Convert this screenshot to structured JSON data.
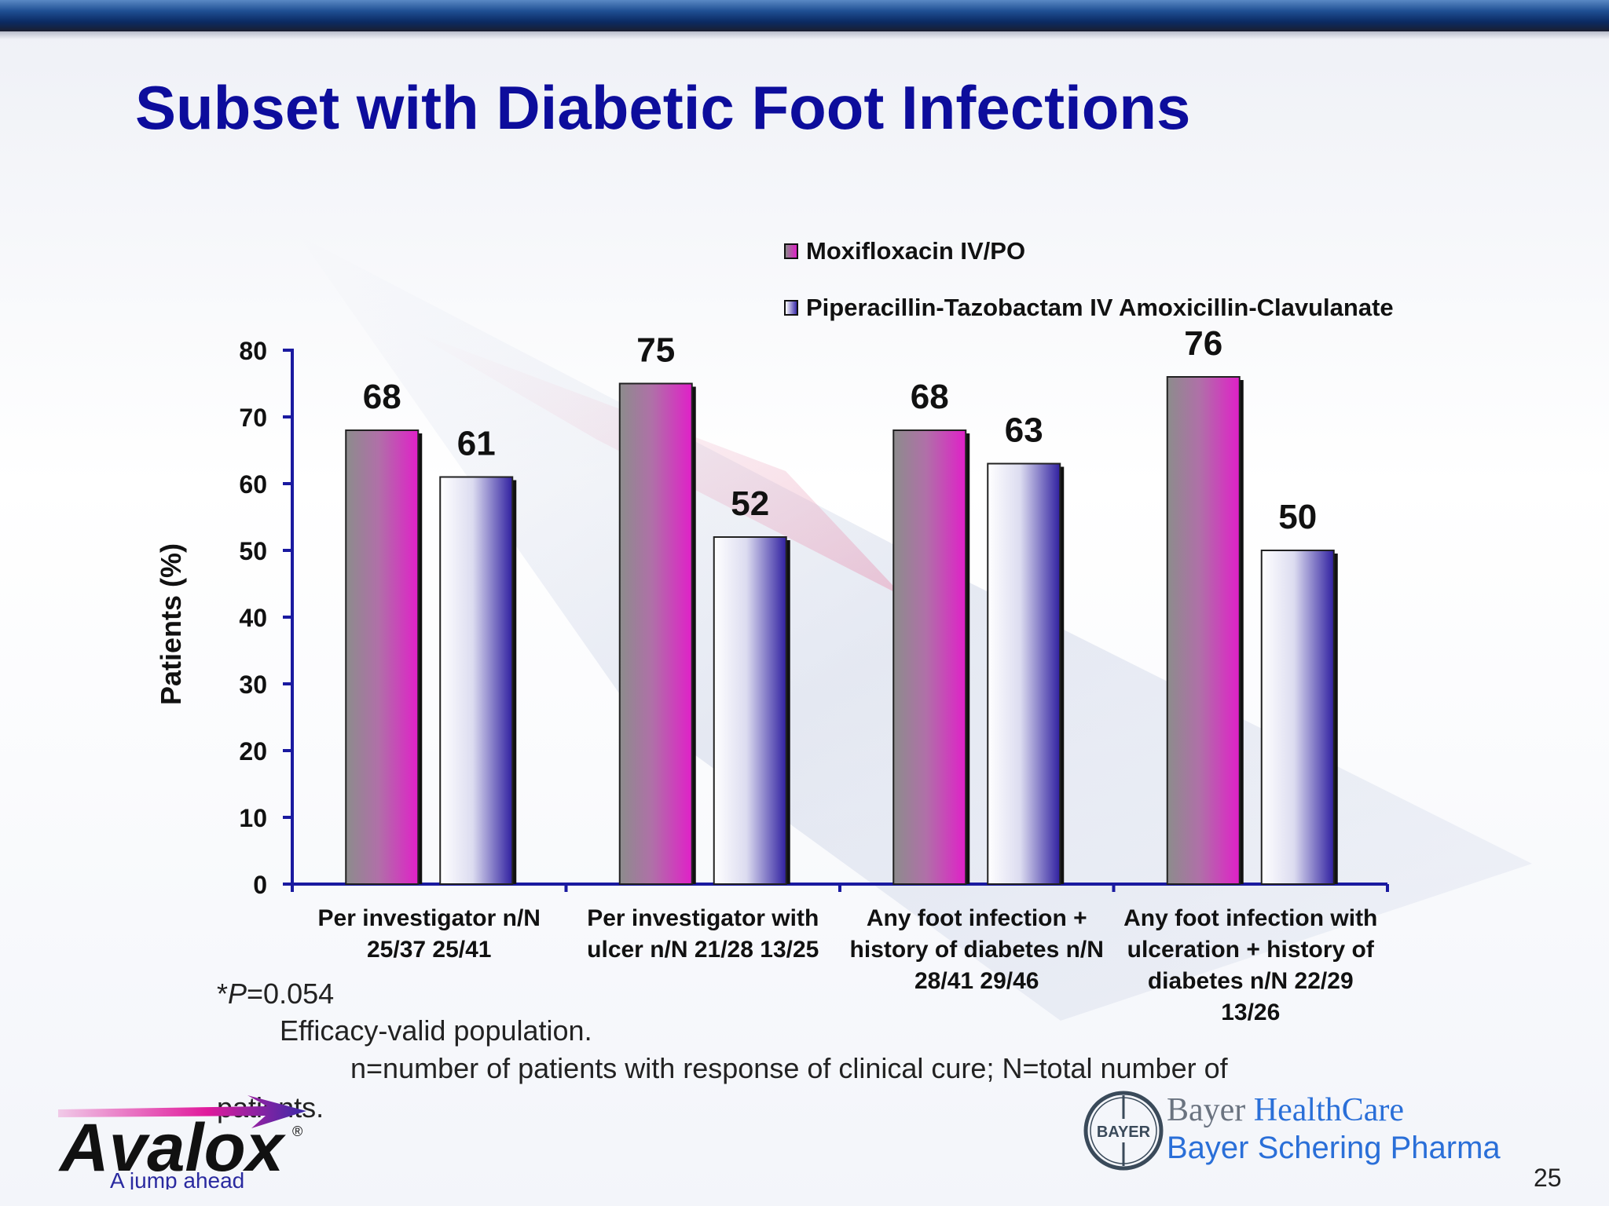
{
  "slide": {
    "title": "Subset with Diabetic Foot Infections",
    "page_number": "25"
  },
  "chart_data": {
    "type": "bar",
    "ylabel": "Patients (%)",
    "ylim": [
      0,
      80
    ],
    "yticks": [
      0,
      10,
      20,
      30,
      40,
      50,
      60,
      70,
      80
    ],
    "legend_position": "top-right",
    "categories": [
      "Per investigator n/N 25/37 25/41",
      "Per investigator with ulcer n/N 21/28 13/25",
      "Any foot infection + history of diabetes n/N 28/41 29/46",
      "Any foot infection with ulceration + history of diabetes n/N 22/29 13/26"
    ],
    "category_lines": [
      [
        "Per investigator n/N",
        "25/37 25/41"
      ],
      [
        "Per investigator with",
        "ulcer n/N 21/28 13/25"
      ],
      [
        "Any foot infection +",
        "history of diabetes n/N",
        "28/41 29/46"
      ],
      [
        "Any foot infection with",
        "ulceration + history of",
        "diabetes n/N 22/29",
        "13/26"
      ]
    ],
    "series": [
      {
        "name": "Moxifloxacin IV/PO",
        "values": [
          68,
          75,
          68,
          76
        ],
        "color": "#e020c8"
      },
      {
        "name": "Piperacillin-Tazobactam IV Amoxicillin-Clavulanate",
        "values": [
          61,
          52,
          63,
          50
        ],
        "color": "#3a2aa8"
      }
    ],
    "axis_color": "#1a1aa0"
  },
  "footnotes": {
    "p_prefix": "*",
    "p_italic": "P",
    "p_value": "=0.054",
    "line2": "Efficacy-valid population.",
    "line3": "n=number of patients with response of clinical cure; N=total number of",
    "line4": "patients."
  },
  "logos": {
    "avalox_brand": "Avalox",
    "avalox_registered": "®",
    "avalox_tagline": "A jump ahead",
    "bayer_seal": "BAYER",
    "bayer_word": "Bayer",
    "healthcare_word": "HealthCare",
    "schering": "Bayer Schering Pharma"
  }
}
